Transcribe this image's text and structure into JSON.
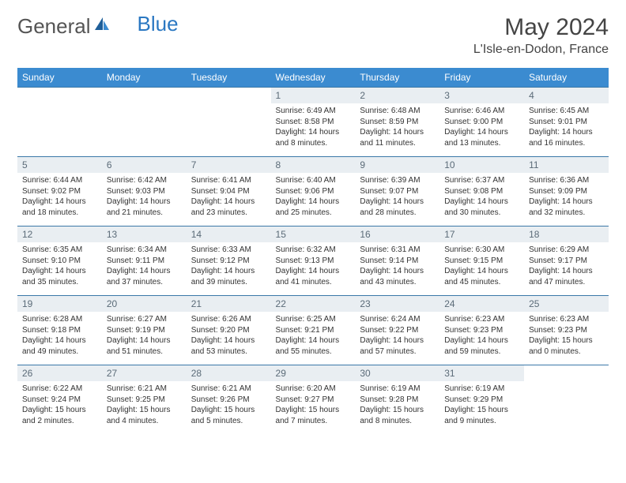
{
  "logo": {
    "general": "General",
    "blue": "Blue"
  },
  "title": "May 2024",
  "location": "L'Isle-en-Dodon, France",
  "colors": {
    "header_bg": "#3b8bd0",
    "header_text": "#ffffff",
    "daynum_bg": "#e9eef2",
    "daynum_text": "#5b6b78",
    "rule": "#3b78a8",
    "logo_blue": "#2b78c2"
  },
  "weekdays": [
    "Sunday",
    "Monday",
    "Tuesday",
    "Wednesday",
    "Thursday",
    "Friday",
    "Saturday"
  ],
  "weeks": [
    [
      {
        "empty": true
      },
      {
        "empty": true
      },
      {
        "empty": true
      },
      {
        "day": "1",
        "sunrise": "Sunrise: 6:49 AM",
        "sunset": "Sunset: 8:58 PM",
        "daylight": "Daylight: 14 hours and 8 minutes."
      },
      {
        "day": "2",
        "sunrise": "Sunrise: 6:48 AM",
        "sunset": "Sunset: 8:59 PM",
        "daylight": "Daylight: 14 hours and 11 minutes."
      },
      {
        "day": "3",
        "sunrise": "Sunrise: 6:46 AM",
        "sunset": "Sunset: 9:00 PM",
        "daylight": "Daylight: 14 hours and 13 minutes."
      },
      {
        "day": "4",
        "sunrise": "Sunrise: 6:45 AM",
        "sunset": "Sunset: 9:01 PM",
        "daylight": "Daylight: 14 hours and 16 minutes."
      }
    ],
    [
      {
        "day": "5",
        "sunrise": "Sunrise: 6:44 AM",
        "sunset": "Sunset: 9:02 PM",
        "daylight": "Daylight: 14 hours and 18 minutes."
      },
      {
        "day": "6",
        "sunrise": "Sunrise: 6:42 AM",
        "sunset": "Sunset: 9:03 PM",
        "daylight": "Daylight: 14 hours and 21 minutes."
      },
      {
        "day": "7",
        "sunrise": "Sunrise: 6:41 AM",
        "sunset": "Sunset: 9:04 PM",
        "daylight": "Daylight: 14 hours and 23 minutes."
      },
      {
        "day": "8",
        "sunrise": "Sunrise: 6:40 AM",
        "sunset": "Sunset: 9:06 PM",
        "daylight": "Daylight: 14 hours and 25 minutes."
      },
      {
        "day": "9",
        "sunrise": "Sunrise: 6:39 AM",
        "sunset": "Sunset: 9:07 PM",
        "daylight": "Daylight: 14 hours and 28 minutes."
      },
      {
        "day": "10",
        "sunrise": "Sunrise: 6:37 AM",
        "sunset": "Sunset: 9:08 PM",
        "daylight": "Daylight: 14 hours and 30 minutes."
      },
      {
        "day": "11",
        "sunrise": "Sunrise: 6:36 AM",
        "sunset": "Sunset: 9:09 PM",
        "daylight": "Daylight: 14 hours and 32 minutes."
      }
    ],
    [
      {
        "day": "12",
        "sunrise": "Sunrise: 6:35 AM",
        "sunset": "Sunset: 9:10 PM",
        "daylight": "Daylight: 14 hours and 35 minutes."
      },
      {
        "day": "13",
        "sunrise": "Sunrise: 6:34 AM",
        "sunset": "Sunset: 9:11 PM",
        "daylight": "Daylight: 14 hours and 37 minutes."
      },
      {
        "day": "14",
        "sunrise": "Sunrise: 6:33 AM",
        "sunset": "Sunset: 9:12 PM",
        "daylight": "Daylight: 14 hours and 39 minutes."
      },
      {
        "day": "15",
        "sunrise": "Sunrise: 6:32 AM",
        "sunset": "Sunset: 9:13 PM",
        "daylight": "Daylight: 14 hours and 41 minutes."
      },
      {
        "day": "16",
        "sunrise": "Sunrise: 6:31 AM",
        "sunset": "Sunset: 9:14 PM",
        "daylight": "Daylight: 14 hours and 43 minutes."
      },
      {
        "day": "17",
        "sunrise": "Sunrise: 6:30 AM",
        "sunset": "Sunset: 9:15 PM",
        "daylight": "Daylight: 14 hours and 45 minutes."
      },
      {
        "day": "18",
        "sunrise": "Sunrise: 6:29 AM",
        "sunset": "Sunset: 9:17 PM",
        "daylight": "Daylight: 14 hours and 47 minutes."
      }
    ],
    [
      {
        "day": "19",
        "sunrise": "Sunrise: 6:28 AM",
        "sunset": "Sunset: 9:18 PM",
        "daylight": "Daylight: 14 hours and 49 minutes."
      },
      {
        "day": "20",
        "sunrise": "Sunrise: 6:27 AM",
        "sunset": "Sunset: 9:19 PM",
        "daylight": "Daylight: 14 hours and 51 minutes."
      },
      {
        "day": "21",
        "sunrise": "Sunrise: 6:26 AM",
        "sunset": "Sunset: 9:20 PM",
        "daylight": "Daylight: 14 hours and 53 minutes."
      },
      {
        "day": "22",
        "sunrise": "Sunrise: 6:25 AM",
        "sunset": "Sunset: 9:21 PM",
        "daylight": "Daylight: 14 hours and 55 minutes."
      },
      {
        "day": "23",
        "sunrise": "Sunrise: 6:24 AM",
        "sunset": "Sunset: 9:22 PM",
        "daylight": "Daylight: 14 hours and 57 minutes."
      },
      {
        "day": "24",
        "sunrise": "Sunrise: 6:23 AM",
        "sunset": "Sunset: 9:23 PM",
        "daylight": "Daylight: 14 hours and 59 minutes."
      },
      {
        "day": "25",
        "sunrise": "Sunrise: 6:23 AM",
        "sunset": "Sunset: 9:23 PM",
        "daylight": "Daylight: 15 hours and 0 minutes."
      }
    ],
    [
      {
        "day": "26",
        "sunrise": "Sunrise: 6:22 AM",
        "sunset": "Sunset: 9:24 PM",
        "daylight": "Daylight: 15 hours and 2 minutes."
      },
      {
        "day": "27",
        "sunrise": "Sunrise: 6:21 AM",
        "sunset": "Sunset: 9:25 PM",
        "daylight": "Daylight: 15 hours and 4 minutes."
      },
      {
        "day": "28",
        "sunrise": "Sunrise: 6:21 AM",
        "sunset": "Sunset: 9:26 PM",
        "daylight": "Daylight: 15 hours and 5 minutes."
      },
      {
        "day": "29",
        "sunrise": "Sunrise: 6:20 AM",
        "sunset": "Sunset: 9:27 PM",
        "daylight": "Daylight: 15 hours and 7 minutes."
      },
      {
        "day": "30",
        "sunrise": "Sunrise: 6:19 AM",
        "sunset": "Sunset: 9:28 PM",
        "daylight": "Daylight: 15 hours and 8 minutes."
      },
      {
        "day": "31",
        "sunrise": "Sunrise: 6:19 AM",
        "sunset": "Sunset: 9:29 PM",
        "daylight": "Daylight: 15 hours and 9 minutes."
      },
      {
        "empty": true
      }
    ]
  ]
}
